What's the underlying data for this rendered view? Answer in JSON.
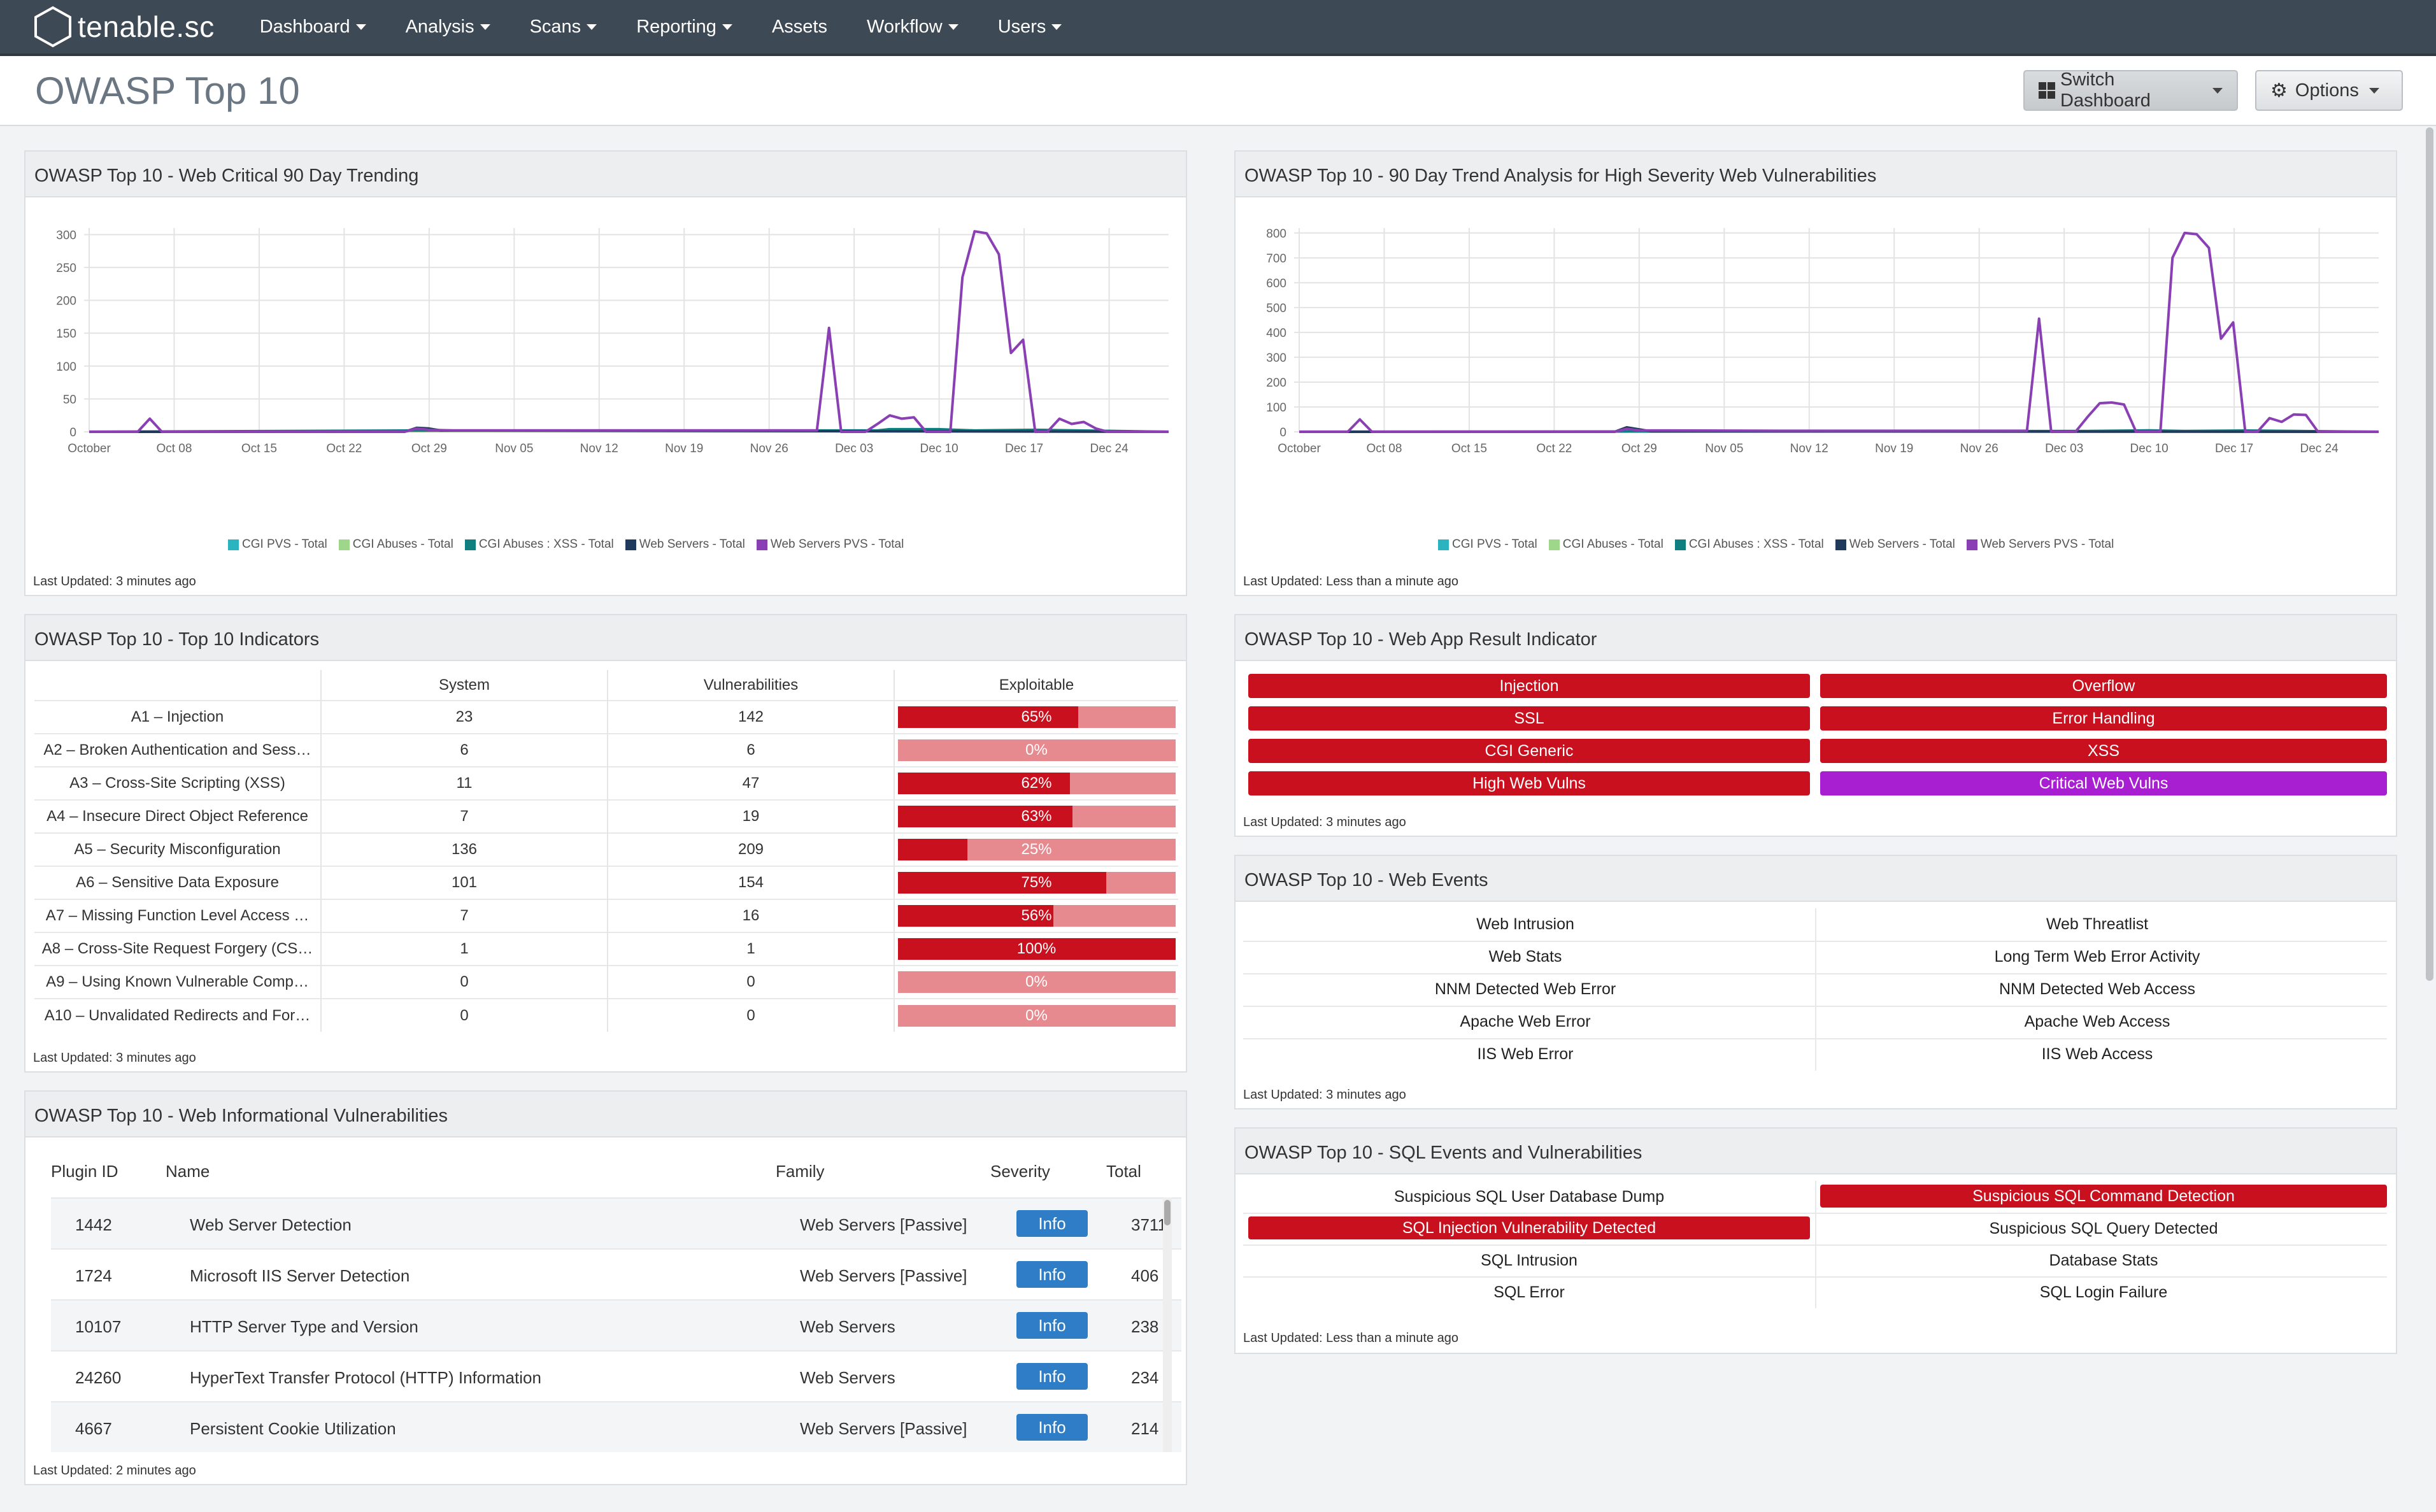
{
  "nav": {
    "brand": "tenable.sc",
    "items": [
      "Dashboard",
      "Analysis",
      "Scans",
      "Reporting",
      "Assets",
      "Workflow",
      "Users"
    ]
  },
  "page": {
    "title": "OWASP Top 10",
    "switch_dashboard": "Switch Dashboard",
    "options": "Options"
  },
  "colors": {
    "nav_bg": "#3d4a55",
    "red": "#c8101e",
    "light_red": "#e68a8f",
    "purple": "#a81ed1",
    "info_blue": "#2f7dc6"
  },
  "legend": [
    {
      "label": "CGI PVS - Total",
      "color": "#2bb3c0"
    },
    {
      "label": "CGI Abuses - Total",
      "color": "#9ed68a"
    },
    {
      "label": "CGI Abuses : XSS - Total",
      "color": "#0f7f7f"
    },
    {
      "label": "Web Servers - Total",
      "color": "#1f3a5a"
    },
    {
      "label": "Web Servers PVS - Total",
      "color": "#8a3fb5"
    }
  ],
  "chart_data": [
    {
      "type": "line",
      "title": "OWASP Top 10 - Web Critical 90 Day Trending",
      "x_ticks": [
        "October",
        "Oct 08",
        "Oct 15",
        "Oct 22",
        "Oct 29",
        "Nov 05",
        "Nov 12",
        "Nov 19",
        "Nov 26",
        "Dec 03",
        "Dec 10",
        "Dec 17",
        "Dec 24"
      ],
      "y_ticks": [
        0,
        50,
        100,
        150,
        200,
        250,
        300
      ],
      "ylim": [
        0,
        310
      ],
      "grid": true,
      "legend_position": "bottom",
      "x_domain": [
        0,
        89
      ],
      "series": [
        {
          "name": "Web Servers PVS - Total",
          "color": "#8a3fb5",
          "points": [
            [
              0,
              0
            ],
            [
              4,
              0
            ],
            [
              5,
              20
            ],
            [
              6,
              0
            ],
            [
              26,
              0
            ],
            [
              27,
              5
            ],
            [
              28,
              3
            ],
            [
              30,
              2
            ],
            [
              40,
              2
            ],
            [
              60,
              2
            ],
            [
              61,
              158
            ],
            [
              62,
              0
            ],
            [
              64,
              0
            ],
            [
              65,
              12
            ],
            [
              66,
              25
            ],
            [
              67,
              20
            ],
            [
              68,
              22
            ],
            [
              69,
              0
            ],
            [
              71,
              0
            ],
            [
              72,
              235
            ],
            [
              73,
              305
            ],
            [
              74,
              302
            ],
            [
              75,
              270
            ],
            [
              76,
              120
            ],
            [
              77,
              140
            ],
            [
              78,
              0
            ],
            [
              79,
              0
            ],
            [
              80,
              20
            ],
            [
              81,
              12
            ],
            [
              82,
              15
            ],
            [
              83,
              5
            ],
            [
              84,
              0
            ],
            [
              89,
              0
            ]
          ]
        },
        {
          "name": "Web Servers - Total",
          "color": "#1f3a5a",
          "points": [
            [
              0,
              0
            ],
            [
              26,
              0
            ],
            [
              27,
              6
            ],
            [
              28,
              5
            ],
            [
              29,
              2
            ],
            [
              89,
              0
            ]
          ]
        },
        {
          "name": "CGI Abuses : XSS - Total",
          "color": "#0f7f7f",
          "points": [
            [
              0,
              0
            ],
            [
              27,
              2
            ],
            [
              65,
              2
            ],
            [
              66,
              4
            ],
            [
              70,
              4
            ],
            [
              73,
              2
            ],
            [
              78,
              3
            ],
            [
              89,
              0
            ]
          ]
        }
      ],
      "last_updated": "Last Updated: 3 minutes ago"
    },
    {
      "type": "line",
      "title": "OWASP Top 10 - 90 Day Trend Analysis for High Severity Web Vulnerabilities",
      "x_ticks": [
        "October",
        "Oct 08",
        "Oct 15",
        "Oct 22",
        "Oct 29",
        "Nov 05",
        "Nov 12",
        "Nov 19",
        "Nov 26",
        "Dec 03",
        "Dec 10",
        "Dec 17",
        "Dec 24"
      ],
      "y_ticks": [
        0,
        100,
        200,
        300,
        400,
        500,
        600,
        700,
        800
      ],
      "ylim": [
        0,
        820
      ],
      "grid": true,
      "legend_position": "bottom",
      "x_domain": [
        0,
        89
      ],
      "series": [
        {
          "name": "Web Servers PVS - Total",
          "color": "#8a3fb5",
          "points": [
            [
              0,
              0
            ],
            [
              4,
              0
            ],
            [
              5,
              50
            ],
            [
              6,
              0
            ],
            [
              26,
              0
            ],
            [
              27,
              12
            ],
            [
              28,
              6
            ],
            [
              40,
              4
            ],
            [
              60,
              4
            ],
            [
              61,
              455
            ],
            [
              62,
              0
            ],
            [
              64,
              0
            ],
            [
              65,
              60
            ],
            [
              66,
              115
            ],
            [
              67,
              118
            ],
            [
              68,
              110
            ],
            [
              69,
              0
            ],
            [
              71,
              0
            ],
            [
              72,
              700
            ],
            [
              73,
              800
            ],
            [
              74,
              795
            ],
            [
              75,
              740
            ],
            [
              76,
              375
            ],
            [
              77,
              440
            ],
            [
              78,
              0
            ],
            [
              79,
              0
            ],
            [
              80,
              55
            ],
            [
              81,
              40
            ],
            [
              82,
              70
            ],
            [
              83,
              68
            ],
            [
              84,
              0
            ],
            [
              89,
              0
            ]
          ]
        },
        {
          "name": "Web Servers - Total",
          "color": "#1f3a5a",
          "points": [
            [
              0,
              0
            ],
            [
              26,
              0
            ],
            [
              27,
              18
            ],
            [
              28,
              10
            ],
            [
              29,
              2
            ],
            [
              89,
              0
            ]
          ]
        },
        {
          "name": "CGI Abuses : XSS - Total",
          "color": "#0f7f7f",
          "points": [
            [
              0,
              0
            ],
            [
              65,
              3
            ],
            [
              70,
              6
            ],
            [
              73,
              3
            ],
            [
              78,
              5
            ],
            [
              89,
              0
            ]
          ]
        }
      ],
      "last_updated": "Last Updated: Less than a minute ago"
    }
  ],
  "indicators_panel": {
    "title": "OWASP Top 10 - Top 10 Indicators",
    "headers": [
      "",
      "System",
      "Vulnerabilities",
      "Exploitable"
    ],
    "rows": [
      {
        "name": "A1 – Injection",
        "system": "23",
        "vulns": "142",
        "exploitable": "65%",
        "pct": 65
      },
      {
        "name": "A2 – Broken Authentication and Sess…",
        "system": "6",
        "vulns": "6",
        "exploitable": "0%",
        "pct": 0
      },
      {
        "name": "A3 – Cross-Site Scripting (XSS)",
        "system": "11",
        "vulns": "47",
        "exploitable": "62%",
        "pct": 62
      },
      {
        "name": "A4 – Insecure Direct Object Reference",
        "system": "7",
        "vulns": "19",
        "exploitable": "63%",
        "pct": 63
      },
      {
        "name": "A5 – Security Misconfiguration",
        "system": "136",
        "vulns": "209",
        "exploitable": "25%",
        "pct": 25
      },
      {
        "name": "A6 – Sensitive Data Exposure",
        "system": "101",
        "vulns": "154",
        "exploitable": "75%",
        "pct": 75
      },
      {
        "name": "A7 – Missing Function Level Access …",
        "system": "7",
        "vulns": "16",
        "exploitable": "56%",
        "pct": 56
      },
      {
        "name": "A8 – Cross-Site Request Forgery (CS…",
        "system": "1",
        "vulns": "1",
        "exploitable": "100%",
        "pct": 100
      },
      {
        "name": "A9 – Using Known Vulnerable Comp…",
        "system": "0",
        "vulns": "0",
        "exploitable": "0%",
        "pct": 0
      },
      {
        "name": "A10 – Unvalidated Redirects and For…",
        "system": "0",
        "vulns": "0",
        "exploitable": "0%",
        "pct": 0
      }
    ],
    "last_updated": "Last Updated: 3 minutes ago"
  },
  "webapp_panel": {
    "title": "OWASP Top 10 - Web App Result Indicator",
    "items": [
      {
        "label": "Injection",
        "state": "red"
      },
      {
        "label": "Overflow",
        "state": "red"
      },
      {
        "label": "SSL",
        "state": "red"
      },
      {
        "label": "Error Handling",
        "state": "red"
      },
      {
        "label": "CGI Generic",
        "state": "red"
      },
      {
        "label": "XSS",
        "state": "red"
      },
      {
        "label": "High Web Vulns",
        "state": "red"
      },
      {
        "label": "Critical Web Vulns",
        "state": "purple"
      }
    ],
    "last_updated": "Last Updated: 3 minutes ago"
  },
  "web_events_panel": {
    "title": "OWASP Top 10 - Web Events",
    "rows": [
      [
        "Web Intrusion",
        "Web Threatlist"
      ],
      [
        "Web Stats",
        "Long Term Web Error Activity"
      ],
      [
        "NNM Detected Web Error",
        "NNM Detected Web Access"
      ],
      [
        "Apache Web Error",
        "Apache Web Access"
      ],
      [
        "IIS Web Error",
        "IIS Web Access"
      ]
    ],
    "last_updated": "Last Updated: 3 minutes ago"
  },
  "sql_panel": {
    "title": "OWASP Top 10 - SQL Events and Vulnerabilities",
    "rows": [
      [
        {
          "label": "Suspicious SQL User Database Dump",
          "state": "none"
        },
        {
          "label": "Suspicious SQL Command Detection",
          "state": "red"
        }
      ],
      [
        {
          "label": "SQL Injection Vulnerability Detected",
          "state": "red"
        },
        {
          "label": "Suspicious SQL Query Detected",
          "state": "none"
        }
      ],
      [
        {
          "label": "SQL Intrusion",
          "state": "none"
        },
        {
          "label": "Database Stats",
          "state": "none"
        }
      ],
      [
        {
          "label": "SQL Error",
          "state": "none"
        },
        {
          "label": "SQL Login Failure",
          "state": "none"
        }
      ]
    ],
    "last_updated": "Last Updated: Less than a minute ago"
  },
  "info_panel": {
    "title": "OWASP Top 10 - Web Informational Vulnerabilities",
    "headers": {
      "plugin_id": "Plugin ID",
      "name": "Name",
      "family": "Family",
      "severity": "Severity",
      "total": "Total"
    },
    "rows": [
      {
        "plugin_id": "1442",
        "name": "Web Server Detection",
        "family": "Web Servers [Passive]",
        "severity": "Info",
        "total": "3711"
      },
      {
        "plugin_id": "1724",
        "name": "Microsoft IIS Server Detection",
        "family": "Web Servers [Passive]",
        "severity": "Info",
        "total": "406"
      },
      {
        "plugin_id": "10107",
        "name": "HTTP Server Type and Version",
        "family": "Web Servers",
        "severity": "Info",
        "total": "238"
      },
      {
        "plugin_id": "24260",
        "name": "HyperText Transfer Protocol (HTTP) Information",
        "family": "Web Servers",
        "severity": "Info",
        "total": "234"
      },
      {
        "plugin_id": "4667",
        "name": "Persistent Cookie Utilization",
        "family": "Web Servers [Passive]",
        "severity": "Info",
        "total": "214"
      }
    ],
    "last_updated": "Last Updated: 2 minutes ago"
  }
}
